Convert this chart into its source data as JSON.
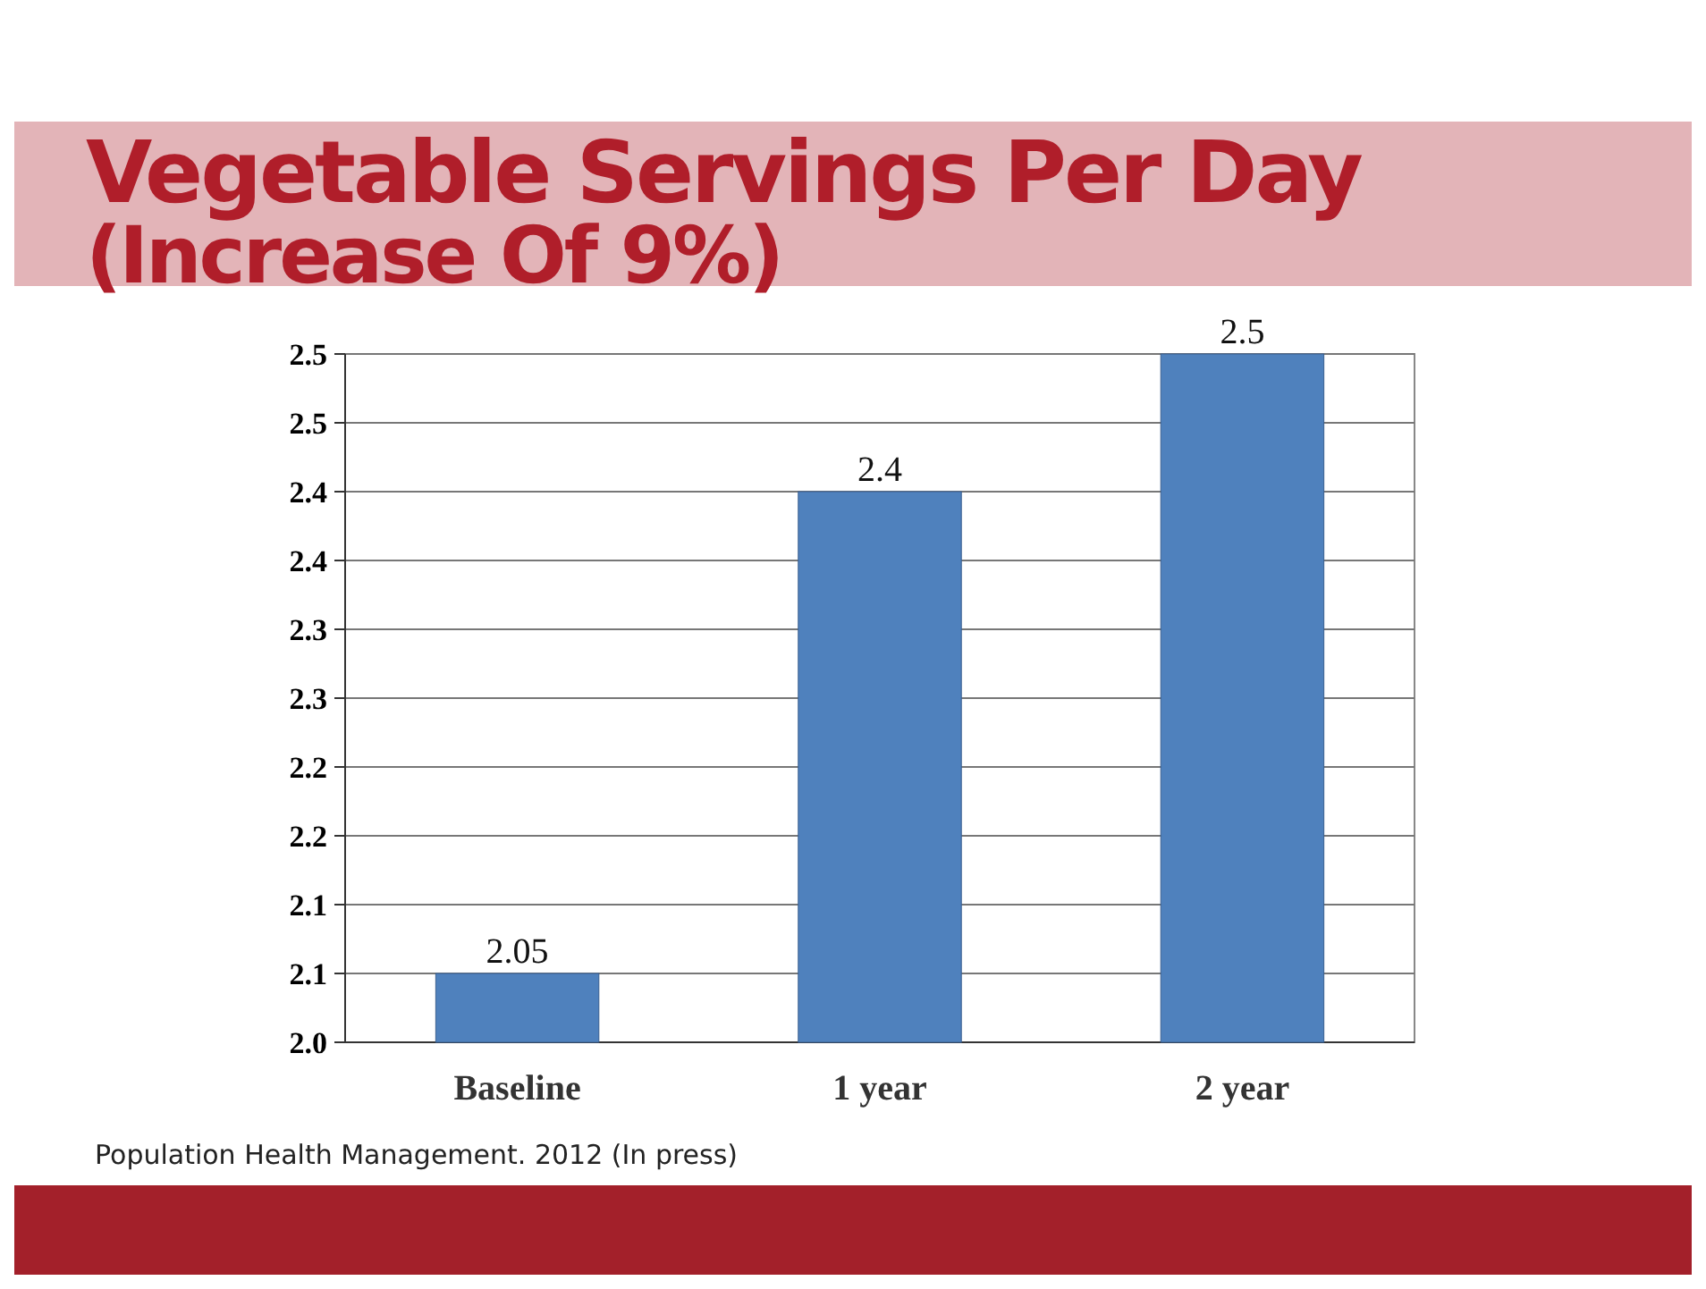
{
  "chart_data": {
    "type": "bar",
    "title": "Vegetable Servings Per Day",
    "subtitle": "(Increase Of 9%)",
    "categories": [
      "Baseline",
      "1 year",
      "2 year"
    ],
    "values": [
      2.05,
      2.4,
      2.5
    ],
    "color": "#4f81bd",
    "ylim": [
      2.0,
      2.5
    ],
    "yticks": [
      {
        "value": 2.0,
        "label": "2.0"
      },
      {
        "value": 2.05,
        "label": "2.1"
      },
      {
        "value": 2.1,
        "label": "2.1"
      },
      {
        "value": 2.15,
        "label": "2.2"
      },
      {
        "value": 2.2,
        "label": "2.2"
      },
      {
        "value": 2.25,
        "label": "2.3"
      },
      {
        "value": 2.3,
        "label": "2.3"
      },
      {
        "value": 2.35,
        "label": "2.4"
      },
      {
        "value": 2.4,
        "label": "2.4"
      },
      {
        "value": 2.45,
        "label": "2.5"
      },
      {
        "value": 2.5,
        "label": "2.5"
      }
    ],
    "grid": "y",
    "data_labels": true,
    "annotations": [
      "Population Health Management. 2012 (In press)"
    ]
  }
}
